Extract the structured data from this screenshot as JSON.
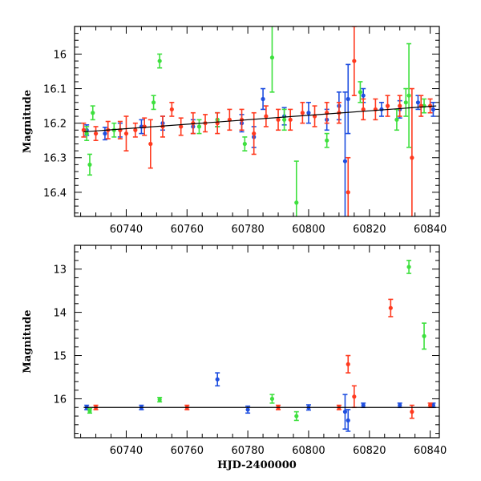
{
  "colors": {
    "blue": "#1f4fe0",
    "green": "#3ee03e",
    "red": "#ff3a1f"
  },
  "chart_data": [
    {
      "type": "scatter",
      "ylabel": "Magnitude",
      "xlabel": "",
      "xlim": [
        60723,
        60843
      ],
      "ylim": [
        16.47,
        15.92
      ],
      "y_inverted": true,
      "xticks": [
        "60740",
        "60760",
        "60780",
        "60800",
        "60820",
        "60840"
      ],
      "yticks": [
        "16",
        "16.1",
        "16.2",
        "16.3",
        "16.4"
      ],
      "trend": {
        "x": [
          60726,
          60842
        ],
        "y": [
          16.225,
          16.15
        ]
      },
      "series": [
        {
          "color": "blue",
          "points": [
            {
              "x": 60727,
              "y": 16.22,
              "err": 0.015
            },
            {
              "x": 60733,
              "y": 16.23,
              "err": 0.018
            },
            {
              "x": 60738,
              "y": 16.22,
              "err": 0.02
            },
            {
              "x": 60745,
              "y": 16.21,
              "err": 0.02
            },
            {
              "x": 60752,
              "y": 16.2,
              "err": 0.02
            },
            {
              "x": 60762,
              "y": 16.21,
              "err": 0.02
            },
            {
              "x": 60770,
              "y": 16.19,
              "err": 0.02
            },
            {
              "x": 60778,
              "y": 16.2,
              "err": 0.025
            },
            {
              "x": 60782,
              "y": 16.24,
              "err": 0.03
            },
            {
              "x": 60785,
              "y": 16.13,
              "err": 0.03
            },
            {
              "x": 60792,
              "y": 16.18,
              "err": 0.025
            },
            {
              "x": 60800,
              "y": 16.17,
              "err": 0.03
            },
            {
              "x": 60806,
              "y": 16.19,
              "err": 0.03
            },
            {
              "x": 60810,
              "y": 16.15,
              "err": 0.04
            },
            {
              "x": 60812,
              "y": 16.31,
              "err": 0.2
            },
            {
              "x": 60813,
              "y": 16.13,
              "err": 0.1
            },
            {
              "x": 60818,
              "y": 16.12,
              "err": 0.02
            },
            {
              "x": 60824,
              "y": 16.16,
              "err": 0.02
            },
            {
              "x": 60830,
              "y": 16.16,
              "err": 0.025
            },
            {
              "x": 60836,
              "y": 16.14,
              "err": 0.02
            },
            {
              "x": 60841,
              "y": 16.16,
              "err": 0.02
            }
          ]
        },
        {
          "color": "green",
          "points": [
            {
              "x": 60727,
              "y": 16.23,
              "err": 0.02
            },
            {
              "x": 60728,
              "y": 16.32,
              "err": 0.03
            },
            {
              "x": 60729,
              "y": 16.17,
              "err": 0.02
            },
            {
              "x": 60736,
              "y": 16.22,
              "err": 0.02
            },
            {
              "x": 60749,
              "y": 16.14,
              "err": 0.02
            },
            {
              "x": 60751,
              "y": 16.02,
              "err": 0.02
            },
            {
              "x": 60764,
              "y": 16.21,
              "err": 0.02
            },
            {
              "x": 60770,
              "y": 16.19,
              "err": 0.02
            },
            {
              "x": 60779,
              "y": 16.26,
              "err": 0.02
            },
            {
              "x": 60788,
              "y": 16.01,
              "err": 0.1
            },
            {
              "x": 60792,
              "y": 16.19,
              "err": 0.03
            },
            {
              "x": 60796,
              "y": 16.43,
              "err": 0.12
            },
            {
              "x": 60806,
              "y": 16.25,
              "err": 0.02
            },
            {
              "x": 60817,
              "y": 16.11,
              "err": 0.03
            },
            {
              "x": 60829,
              "y": 16.19,
              "err": 0.03
            },
            {
              "x": 60832,
              "y": 16.14,
              "err": 0.04
            },
            {
              "x": 60833,
              "y": 16.12,
              "err": 0.15
            },
            {
              "x": 60838,
              "y": 16.15,
              "err": 0.02
            }
          ]
        },
        {
          "color": "red",
          "points": [
            {
              "x": 60726,
              "y": 16.22,
              "err": 0.02
            },
            {
              "x": 60730,
              "y": 16.23,
              "err": 0.02
            },
            {
              "x": 60734,
              "y": 16.22,
              "err": 0.025
            },
            {
              "x": 60738,
              "y": 16.22,
              "err": 0.025
            },
            {
              "x": 60740,
              "y": 16.23,
              "err": 0.05
            },
            {
              "x": 60743,
              "y": 16.22,
              "err": 0.02
            },
            {
              "x": 60746,
              "y": 16.21,
              "err": 0.025
            },
            {
              "x": 60748,
              "y": 16.26,
              "err": 0.07
            },
            {
              "x": 60752,
              "y": 16.21,
              "err": 0.03
            },
            {
              "x": 60755,
              "y": 16.16,
              "err": 0.02
            },
            {
              "x": 60758,
              "y": 16.21,
              "err": 0.025
            },
            {
              "x": 60762,
              "y": 16.2,
              "err": 0.03
            },
            {
              "x": 60766,
              "y": 16.2,
              "err": 0.025
            },
            {
              "x": 60770,
              "y": 16.2,
              "err": 0.03
            },
            {
              "x": 60774,
              "y": 16.19,
              "err": 0.03
            },
            {
              "x": 60778,
              "y": 16.19,
              "err": 0.03
            },
            {
              "x": 60782,
              "y": 16.23,
              "err": 0.06
            },
            {
              "x": 60786,
              "y": 16.18,
              "err": 0.03
            },
            {
              "x": 60790,
              "y": 16.19,
              "err": 0.03
            },
            {
              "x": 60794,
              "y": 16.19,
              "err": 0.03
            },
            {
              "x": 60798,
              "y": 16.17,
              "err": 0.03
            },
            {
              "x": 60802,
              "y": 16.18,
              "err": 0.03
            },
            {
              "x": 60806,
              "y": 16.17,
              "err": 0.03
            },
            {
              "x": 60810,
              "y": 16.17,
              "err": 0.03
            },
            {
              "x": 60813,
              "y": 16.4,
              "err": 0.1
            },
            {
              "x": 60815,
              "y": 16.02,
              "err": 0.1
            },
            {
              "x": 60818,
              "y": 16.16,
              "err": 0.03
            },
            {
              "x": 60822,
              "y": 16.16,
              "err": 0.03
            },
            {
              "x": 60826,
              "y": 16.15,
              "err": 0.03
            },
            {
              "x": 60830,
              "y": 16.15,
              "err": 0.03
            },
            {
              "x": 60834,
              "y": 16.3,
              "err": 0.2
            },
            {
              "x": 60837,
              "y": 16.15,
              "err": 0.03
            },
            {
              "x": 60840,
              "y": 16.15,
              "err": 0.02
            }
          ]
        }
      ]
    },
    {
      "type": "scatter",
      "ylabel": "Magnitude",
      "xlabel": "HJD-2400000",
      "xlim": [
        60723,
        60843
      ],
      "ylim": [
        16.9,
        12.45
      ],
      "y_inverted": true,
      "xticks": [
        "60740",
        "60760",
        "60780",
        "60800",
        "60820",
        "60840"
      ],
      "yticks": [
        "13",
        "14",
        "15",
        "16"
      ],
      "trend": {
        "x": [
          60726,
          60842
        ],
        "y": [
          16.2,
          16.2
        ]
      },
      "series": [
        {
          "color": "blue",
          "points": [
            {
              "x": 60727,
              "y": 16.2,
              "err": 0.05
            },
            {
              "x": 60745,
              "y": 16.2,
              "err": 0.05
            },
            {
              "x": 60770,
              "y": 15.55,
              "err": 0.15
            },
            {
              "x": 60780,
              "y": 16.25,
              "err": 0.08
            },
            {
              "x": 60800,
              "y": 16.2,
              "err": 0.06
            },
            {
              "x": 60812,
              "y": 16.3,
              "err": 0.4
            },
            {
              "x": 60813,
              "y": 16.5,
              "err": 0.25
            },
            {
              "x": 60818,
              "y": 16.15,
              "err": 0.05
            },
            {
              "x": 60830,
              "y": 16.15,
              "err": 0.05
            },
            {
              "x": 60841,
              "y": 16.15,
              "err": 0.05
            }
          ]
        },
        {
          "color": "green",
          "points": [
            {
              "x": 60728,
              "y": 16.28,
              "err": 0.05
            },
            {
              "x": 60751,
              "y": 16.02,
              "err": 0.05
            },
            {
              "x": 60788,
              "y": 16.0,
              "err": 0.1
            },
            {
              "x": 60796,
              "y": 16.4,
              "err": 0.1
            },
            {
              "x": 60833,
              "y": 12.95,
              "err": 0.15
            },
            {
              "x": 60838,
              "y": 14.55,
              "err": 0.3
            }
          ]
        },
        {
          "color": "red",
          "points": [
            {
              "x": 60730,
              "y": 16.2,
              "err": 0.05
            },
            {
              "x": 60760,
              "y": 16.2,
              "err": 0.05
            },
            {
              "x": 60790,
              "y": 16.2,
              "err": 0.05
            },
            {
              "x": 60810,
              "y": 16.2,
              "err": 0.05
            },
            {
              "x": 60813,
              "y": 15.2,
              "err": 0.2
            },
            {
              "x": 60815,
              "y": 15.95,
              "err": 0.25
            },
            {
              "x": 60827,
              "y": 13.9,
              "err": 0.2
            },
            {
              "x": 60834,
              "y": 16.3,
              "err": 0.15
            },
            {
              "x": 60840,
              "y": 16.15,
              "err": 0.05
            }
          ]
        }
      ]
    }
  ]
}
